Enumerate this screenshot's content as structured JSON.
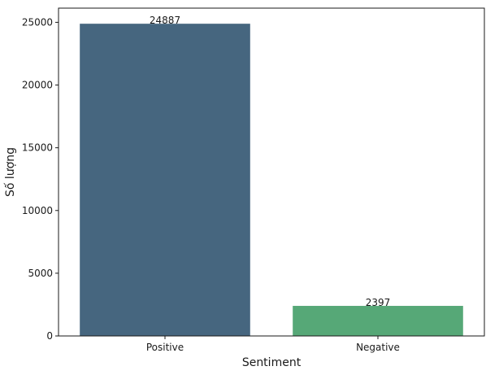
{
  "chart_data": {
    "type": "bar",
    "categories": [
      "Positive",
      "Negative"
    ],
    "values": [
      24887,
      2397
    ],
    "data_labels": [
      "24887",
      "2397"
    ],
    "colors": [
      "#46667f",
      "#56a877"
    ],
    "xlabel": "Sentiment",
    "ylabel": "Số lượng",
    "ylim": [
      0,
      26130
    ],
    "yticks": [
      0,
      5000,
      10000,
      15000,
      20000,
      25000
    ],
    "ytick_labels": [
      "0",
      "5000",
      "10000",
      "15000",
      "20000",
      "25000"
    ],
    "grid": false,
    "legend": "none"
  }
}
